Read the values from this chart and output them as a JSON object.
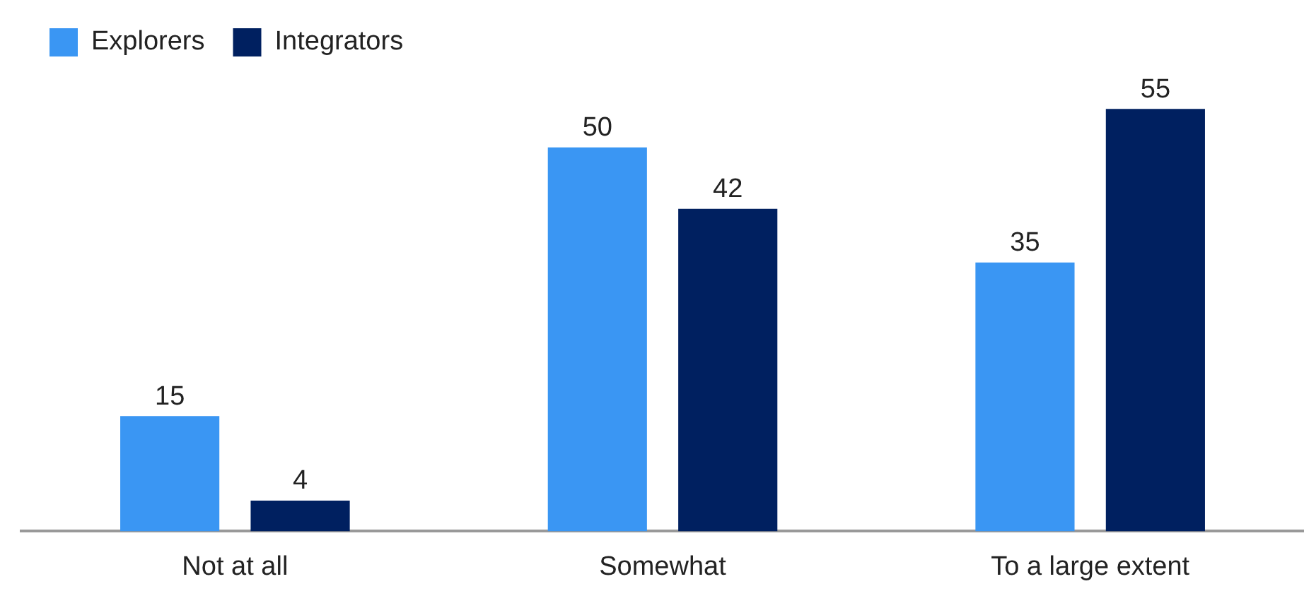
{
  "chart_data": {
    "type": "bar",
    "categories": [
      "Not at all",
      "Somewhat",
      "To a large extent"
    ],
    "series": [
      {
        "name": "Explorers",
        "color": "#3a96f3",
        "values": [
          15,
          50,
          35
        ]
      },
      {
        "name": "Integrators",
        "color": "#002060",
        "values": [
          4,
          42,
          55
        ]
      }
    ],
    "data_labels": true,
    "legend": "top left",
    "grid": false
  }
}
